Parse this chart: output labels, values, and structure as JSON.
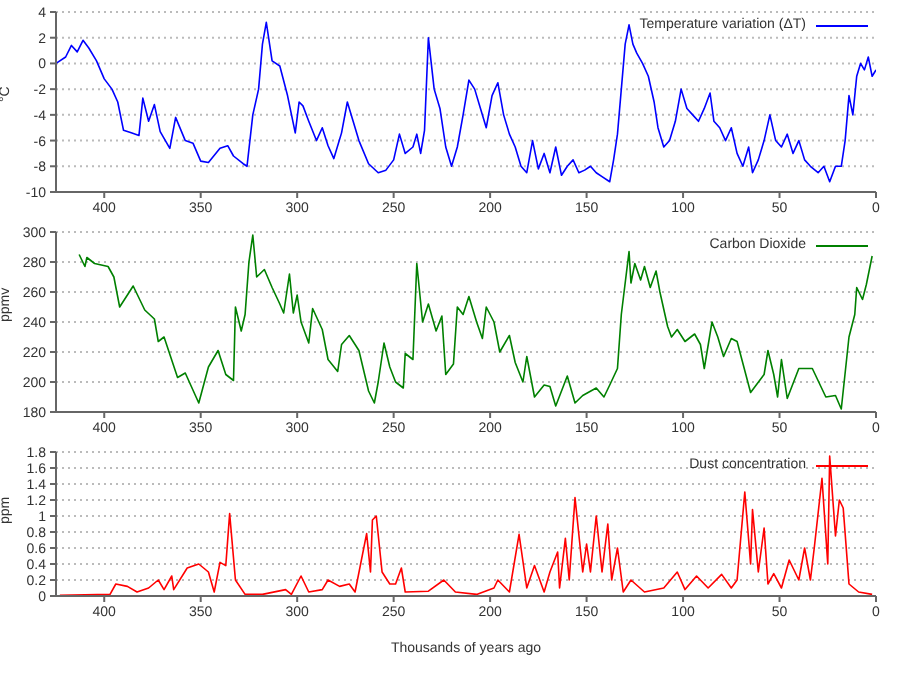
{
  "chart_data": [
    {
      "type": "line",
      "ylabel": "°C",
      "xlim": [
        425,
        0
      ],
      "xticks": [
        400,
        350,
        300,
        250,
        200,
        150,
        100,
        50,
        0
      ],
      "ylim": [
        -10,
        4
      ],
      "yticks": [
        -10,
        -8,
        -6,
        -4,
        -2,
        0,
        2,
        4
      ],
      "grid": "y",
      "legend": "top right",
      "series": [
        {
          "name": "Temperature variation (ΔT)",
          "color": "#0000ff",
          "x": [
            425,
            420,
            417,
            414,
            411,
            408,
            404,
            400,
            396,
            393,
            390,
            386,
            382,
            380,
            377,
            374,
            371,
            366,
            363,
            358,
            354,
            350,
            346,
            340,
            336,
            333,
            328,
            326,
            323,
            320,
            318,
            316,
            313,
            309,
            305,
            301,
            299,
            297,
            294,
            290,
            287,
            284,
            281,
            277,
            274,
            271,
            268,
            263,
            258,
            254,
            250,
            247,
            244,
            240,
            238,
            236,
            234,
            232,
            229,
            226,
            223,
            220,
            217,
            214,
            211,
            208,
            205,
            202,
            199,
            196,
            193,
            190,
            187,
            184,
            181,
            178,
            175,
            172,
            169,
            166,
            163,
            160,
            157,
            154,
            151,
            148,
            145,
            142,
            138,
            136,
            134,
            132,
            130,
            128,
            126,
            124,
            121,
            118,
            115,
            113,
            110,
            107,
            104,
            101,
            98,
            95,
            92,
            89,
            86,
            84,
            81,
            78,
            75,
            72,
            69,
            66,
            64,
            61,
            58,
            55,
            52,
            49,
            46,
            43,
            40,
            37,
            34,
            30,
            27,
            24,
            21,
            18,
            16,
            14,
            12,
            10,
            8,
            6,
            4,
            2,
            0
          ],
          "values": [
            0,
            0.5,
            1.4,
            0.9,
            1.8,
            1.2,
            0.2,
            -1.2,
            -2,
            -3,
            -5.2,
            -5.4,
            -5.6,
            -2.7,
            -4.5,
            -3.2,
            -5.3,
            -6.6,
            -4.2,
            -6,
            -6.2,
            -7.6,
            -7.7,
            -6.6,
            -6.4,
            -7.2,
            -7.8,
            -8,
            -4,
            -2,
            1.5,
            3.2,
            0.2,
            -0.2,
            -2.5,
            -5.4,
            -3,
            -3.3,
            -4.5,
            -6,
            -5,
            -6.4,
            -7.4,
            -5.4,
            -3,
            -4.5,
            -6,
            -7.8,
            -8.5,
            -8.3,
            -7.5,
            -5.5,
            -7,
            -6.5,
            -5.5,
            -7,
            -5.2,
            2,
            -2,
            -3.5,
            -6.5,
            -8,
            -6.5,
            -4,
            -1.3,
            -2,
            -3.5,
            -5,
            -2.5,
            -1.5,
            -4,
            -5.5,
            -6.5,
            -8,
            -8.5,
            -6,
            -8.2,
            -7,
            -8.5,
            -6.5,
            -8.7,
            -8,
            -7.5,
            -8.5,
            -8.3,
            -8,
            -8.5,
            -8.8,
            -9.2,
            -7.5,
            -5.5,
            -2,
            1.5,
            3,
            1.5,
            0.8,
            0,
            -1,
            -3,
            -5,
            -6.5,
            -6,
            -4.5,
            -2,
            -3.5,
            -4,
            -4.5,
            -3.5,
            -2.3,
            -4.5,
            -5,
            -6,
            -5,
            -7,
            -8,
            -6.5,
            -8.5,
            -7.5,
            -6,
            -4,
            -6,
            -6.5,
            -5.5,
            -7,
            -6,
            -7.5,
            -8,
            -8.5,
            -8,
            -9.2,
            -8,
            -8,
            -6,
            -2.5,
            -4,
            -1,
            0,
            -0.5,
            0.5,
            -1,
            -0.5
          ]
        }
      ]
    },
    {
      "type": "line",
      "ylabel": "ppmv",
      "xlim": [
        425,
        0
      ],
      "xticks": [
        400,
        350,
        300,
        250,
        200,
        150,
        100,
        50,
        0
      ],
      "ylim": [
        180,
        300
      ],
      "yticks": [
        180,
        200,
        220,
        240,
        260,
        280,
        300
      ],
      "grid": "y",
      "legend": "top right",
      "series": [
        {
          "name": "Carbon Dioxide",
          "color": "#008000",
          "x": [
            413,
            410,
            409,
            405,
            398,
            395,
            392,
            385,
            379,
            374,
            372,
            369,
            362,
            358,
            351,
            346,
            341,
            337,
            333,
            332,
            329,
            327,
            325,
            323,
            321,
            317,
            313,
            309,
            307,
            304,
            302,
            300,
            298,
            294,
            292,
            287,
            284,
            279,
            277,
            273,
            268,
            263,
            260,
            258,
            255,
            252,
            249,
            245,
            244,
            240,
            238,
            235,
            232,
            228,
            225,
            223,
            219,
            217,
            214,
            211,
            207,
            204,
            202,
            198,
            195,
            190,
            187,
            183,
            181,
            177,
            172,
            169,
            166,
            160,
            156,
            152,
            145,
            141,
            138,
            134,
            132,
            128,
            127,
            125,
            122,
            120,
            117,
            114,
            112,
            108,
            106,
            103,
            99,
            94,
            91,
            89,
            85,
            82,
            79,
            75,
            72,
            65,
            58,
            56,
            53,
            51,
            49,
            46,
            40,
            33,
            26,
            21,
            18,
            14,
            11,
            10,
            7,
            5,
            2
          ],
          "values": [
            285,
            277,
            283,
            279,
            277,
            270,
            250,
            264,
            248,
            242,
            227,
            230,
            203,
            206,
            186,
            210,
            221,
            205,
            201,
            250,
            234,
            245,
            280,
            298,
            270,
            275,
            263,
            252,
            246,
            272,
            246,
            258,
            240,
            226,
            249,
            235,
            215,
            207,
            225,
            231,
            221,
            194,
            186,
            200,
            226,
            210,
            200,
            196,
            219,
            215,
            279,
            240,
            252,
            234,
            244,
            205,
            212,
            250,
            245,
            257,
            240,
            229,
            250,
            240,
            220,
            231,
            213,
            200,
            217,
            190,
            198,
            197,
            184,
            204,
            186,
            191,
            196,
            190,
            198,
            209,
            245,
            287,
            266,
            279,
            268,
            277,
            263,
            274,
            260,
            237,
            230,
            235,
            227,
            232,
            225,
            209,
            240,
            230,
            217,
            229,
            227,
            193,
            205,
            221,
            205,
            190,
            215,
            189,
            209,
            209,
            190,
            191,
            182,
            230,
            245,
            263,
            255,
            265,
            284
          ]
        }
      ]
    },
    {
      "type": "line",
      "ylabel": "ppm",
      "xlabel": "Thousands of years ago",
      "xlim": [
        425,
        0
      ],
      "xticks": [
        400,
        350,
        300,
        250,
        200,
        150,
        100,
        50,
        0
      ],
      "ylim": [
        0,
        1.8
      ],
      "yticks": [
        0,
        0.2,
        0.4,
        0.6,
        0.8,
        1,
        1.2,
        1.4,
        1.6,
        1.8
      ],
      "grid": "y",
      "legend": "top right",
      "series": [
        {
          "name": "Dust concentration",
          "color": "#ff0000",
          "x": [
            423,
            397,
            394,
            388,
            383,
            377,
            372,
            369,
            365,
            364,
            357,
            351,
            346,
            343,
            340,
            337,
            335,
            332,
            327,
            318,
            306,
            303,
            298,
            294,
            287,
            284,
            278,
            273,
            270,
            264,
            262,
            261,
            259,
            256,
            252,
            249,
            246,
            244,
            232,
            224,
            218,
            207,
            198,
            196,
            190,
            185,
            181,
            177,
            172,
            169,
            165,
            164,
            161,
            159,
            156,
            152,
            150,
            148,
            145,
            142,
            139,
            137,
            134,
            131,
            127,
            120,
            110,
            103,
            99,
            93,
            87,
            80,
            75,
            72,
            68,
            65,
            64,
            61,
            58,
            56,
            53,
            49,
            45,
            40,
            37,
            34,
            32,
            28,
            25,
            24,
            21,
            19,
            17,
            14,
            9,
            2
          ],
          "values": [
            0.01,
            0.02,
            0.15,
            0.12,
            0.05,
            0.1,
            0.2,
            0.08,
            0.25,
            0.08,
            0.35,
            0.4,
            0.3,
            0.05,
            0.42,
            0.38,
            1.03,
            0.2,
            0.02,
            0.02,
            0.08,
            0.02,
            0.25,
            0.05,
            0.08,
            0.2,
            0.12,
            0.15,
            0.05,
            0.78,
            0.3,
            0.95,
            1,
            0.3,
            0.15,
            0.15,
            0.35,
            0.05,
            0.06,
            0.2,
            0.05,
            0.02,
            0.1,
            0.2,
            0.05,
            0.77,
            0.1,
            0.38,
            0.05,
            0.3,
            0.55,
            0.1,
            0.72,
            0.2,
            1.23,
            0.3,
            0.65,
            0.3,
            1,
            0.3,
            0.9,
            0.2,
            0.6,
            0.05,
            0.2,
            0.05,
            0.1,
            0.3,
            0.08,
            0.25,
            0.1,
            0.27,
            0.1,
            0.2,
            1.3,
            0.4,
            1.08,
            0.3,
            0.85,
            0.15,
            0.28,
            0.1,
            0.45,
            0.2,
            0.6,
            0.2,
            0.6,
            1.47,
            0.4,
            1.75,
            0.75,
            1.2,
            1.1,
            0.15,
            0.05,
            0.02
          ]
        }
      ]
    }
  ]
}
